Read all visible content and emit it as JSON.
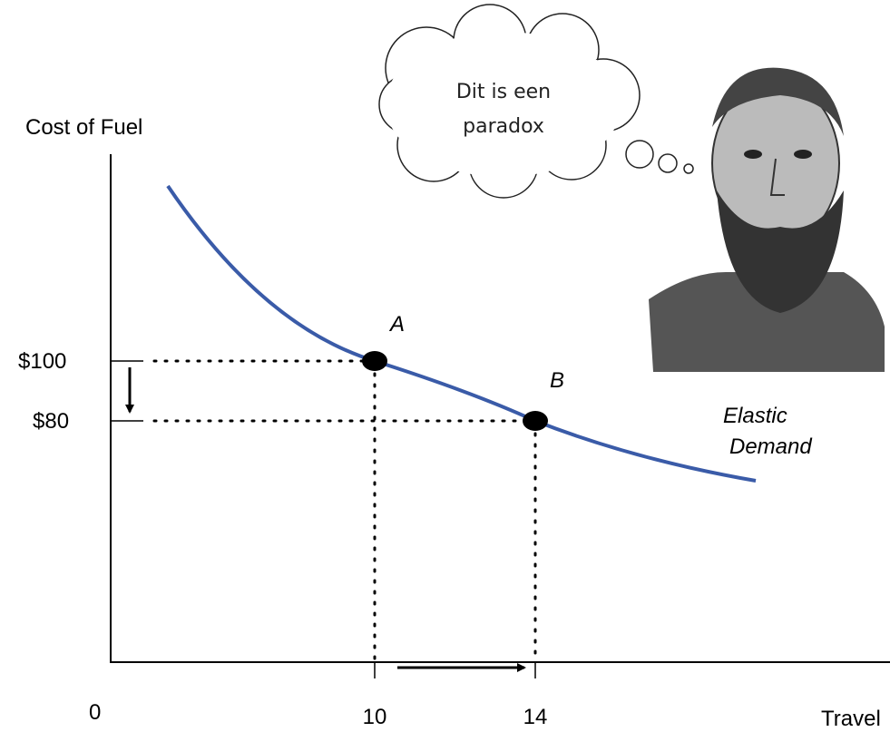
{
  "y_axis": {
    "label": "Cost of Fuel",
    "ticks": [
      "$100",
      "$80"
    ]
  },
  "x_axis": {
    "origin": "0",
    "ticks": [
      "10",
      "14"
    ],
    "label": "Travel"
  },
  "points": [
    {
      "label": "A"
    },
    {
      "label": "B"
    }
  ],
  "curve_label": [
    "Elastic",
    "Demand"
  ],
  "thought": [
    "Dit is een",
    "paradox"
  ]
}
